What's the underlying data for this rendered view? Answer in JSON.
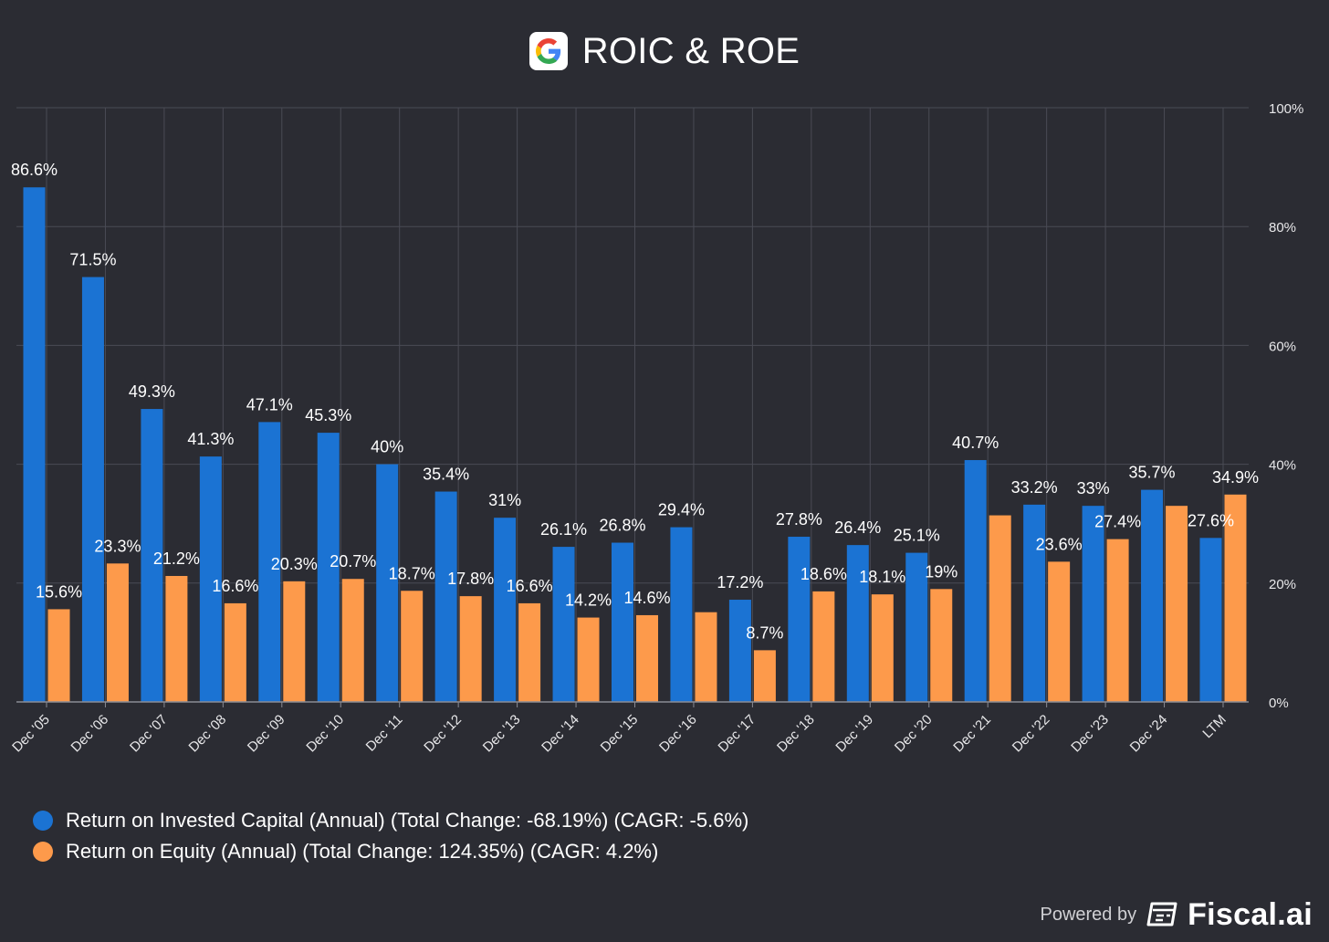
{
  "header": {
    "title": "ROIC & ROE",
    "logo_icon": "google-logo"
  },
  "chart_data": {
    "type": "bar",
    "categories": [
      "Dec '05",
      "Dec '06",
      "Dec '07",
      "Dec '08",
      "Dec '09",
      "Dec '10",
      "Dec '11",
      "Dec '12",
      "Dec '13",
      "Dec '14",
      "Dec '15",
      "Dec '16",
      "Dec '17",
      "Dec '18",
      "Dec '19",
      "Dec '20",
      "Dec '21",
      "Dec '22",
      "Dec '23",
      "Dec '24",
      "LTM"
    ],
    "series": [
      {
        "name": "Return on Invested Capital (Annual) (Total Change: -68.19%) (CAGR: -5.6%)",
        "color": "#1b73d3",
        "values": [
          86.6,
          71.5,
          49.3,
          41.3,
          47.1,
          45.3,
          40.0,
          35.4,
          31.0,
          26.1,
          26.8,
          29.4,
          17.2,
          27.8,
          26.4,
          25.1,
          40.7,
          33.2,
          33.0,
          35.7,
          27.6
        ],
        "labels": [
          "86.6%",
          "71.5%",
          "49.3%",
          "41.3%",
          "47.1%",
          "45.3%",
          "40%",
          "35.4%",
          "31%",
          "26.1%",
          "26.8%",
          "29.4%",
          "17.2%",
          "27.8%",
          "26.4%",
          "25.1%",
          "40.7%",
          "33.2%",
          "33%",
          "35.7%",
          "27.6%"
        ]
      },
      {
        "name": "Return on Equity (Annual) (Total Change: 124.35%) (CAGR: 4.2%)",
        "color": "#fd9a4b",
        "values": [
          15.6,
          23.3,
          21.2,
          16.6,
          20.3,
          20.7,
          18.7,
          17.8,
          16.6,
          14.2,
          14.6,
          15.1,
          8.7,
          18.6,
          18.1,
          19.0,
          31.4,
          23.6,
          27.4,
          33.0,
          34.9
        ],
        "labels": [
          "15.6%",
          "23.3%",
          "21.2%",
          "16.6%",
          "20.3%",
          "20.7%",
          "18.7%",
          "17.8%",
          "16.6%",
          "14.2%",
          "14.6%",
          "",
          "8.7%",
          "18.6%",
          "18.1%",
          "19%",
          "",
          "23.6%",
          "27.4%",
          "",
          "34.9%"
        ]
      }
    ],
    "y_ticks": [
      "100%",
      "80%",
      "60%",
      "40%",
      "20%",
      "0%"
    ],
    "y_tick_values": [
      100,
      80,
      60,
      40,
      20,
      0
    ],
    "ylim": [
      0,
      100
    ],
    "y_axis_side": "right",
    "grid": true,
    "legend_position": "bottom-left"
  },
  "footer": {
    "powered_by": "Powered by",
    "brand": "Fiscal.ai",
    "brand_icon": "fiscal-ai-logo"
  }
}
